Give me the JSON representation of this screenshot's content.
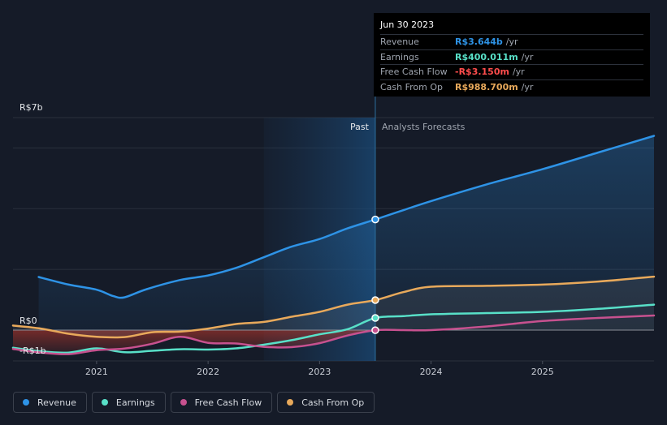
{
  "chart_data": {
    "type": "line",
    "y_axis": {
      "top_label": "R$7b",
      "zero_label": "R$0",
      "bottom_label": "-R$1b",
      "ylim": [
        -1.0,
        7.0
      ],
      "grid_values": [
        7,
        6,
        4,
        2
      ]
    },
    "x_axis": {
      "tick_labels": [
        "2021",
        "2022",
        "2023",
        "2024",
        "2025"
      ],
      "tick_values": [
        2021,
        2022,
        2023,
        2024,
        2025
      ],
      "xlim": [
        2020.25,
        2026.0
      ]
    },
    "divider": {
      "x": 2023.5,
      "past_label": "Past",
      "forecast_label": "Analysts Forecasts",
      "shade_start": 2022.5
    },
    "series": [
      {
        "name": "Revenue",
        "color": "#2e93e6",
        "values": [
          [
            2020.48,
            1.75
          ],
          [
            2020.75,
            1.5
          ],
          [
            2021.0,
            1.33
          ],
          [
            2021.15,
            1.12
          ],
          [
            2021.25,
            1.08
          ],
          [
            2021.45,
            1.35
          ],
          [
            2021.75,
            1.65
          ],
          [
            2022.0,
            1.8
          ],
          [
            2022.25,
            2.05
          ],
          [
            2022.5,
            2.4
          ],
          [
            2022.75,
            2.75
          ],
          [
            2023.0,
            3.0
          ],
          [
            2023.25,
            3.35
          ],
          [
            2023.5,
            3.644
          ],
          [
            2023.75,
            3.95
          ],
          [
            2024.0,
            4.25
          ],
          [
            2024.5,
            4.8
          ],
          [
            2025.0,
            5.3
          ],
          [
            2025.5,
            5.85
          ],
          [
            2026.0,
            6.4
          ]
        ]
      },
      {
        "name": "Earnings",
        "color": "#58e0c8",
        "values": [
          [
            2020.25,
            -0.58
          ],
          [
            2020.5,
            -0.7
          ],
          [
            2020.75,
            -0.74
          ],
          [
            2021.0,
            -0.6
          ],
          [
            2021.25,
            -0.73
          ],
          [
            2021.5,
            -0.68
          ],
          [
            2021.75,
            -0.63
          ],
          [
            2022.0,
            -0.64
          ],
          [
            2022.25,
            -0.6
          ],
          [
            2022.5,
            -0.48
          ],
          [
            2022.75,
            -0.33
          ],
          [
            2023.0,
            -0.14
          ],
          [
            2023.25,
            0.03
          ],
          [
            2023.5,
            0.4
          ],
          [
            2023.75,
            0.46
          ],
          [
            2024.0,
            0.52
          ],
          [
            2024.5,
            0.56
          ],
          [
            2025.0,
            0.6
          ],
          [
            2025.5,
            0.7
          ],
          [
            2026.0,
            0.84
          ]
        ]
      },
      {
        "name": "Free Cash Flow",
        "color": "#c7518f",
        "values": [
          [
            2020.25,
            -0.62
          ],
          [
            2020.5,
            -0.74
          ],
          [
            2020.75,
            -0.79
          ],
          [
            2021.0,
            -0.66
          ],
          [
            2021.25,
            -0.61
          ],
          [
            2021.5,
            -0.45
          ],
          [
            2021.75,
            -0.22
          ],
          [
            2022.0,
            -0.42
          ],
          [
            2022.25,
            -0.44
          ],
          [
            2022.5,
            -0.55
          ],
          [
            2022.75,
            -0.56
          ],
          [
            2023.0,
            -0.43
          ],
          [
            2023.25,
            -0.18
          ],
          [
            2023.5,
            -0.00315
          ],
          [
            2023.75,
            0.0
          ],
          [
            2024.0,
            0.0
          ],
          [
            2024.5,
            0.12
          ],
          [
            2025.0,
            0.3
          ],
          [
            2025.5,
            0.4
          ],
          [
            2026.0,
            0.48
          ]
        ]
      },
      {
        "name": "Cash From Op",
        "color": "#e8a95b",
        "values": [
          [
            2020.25,
            0.15
          ],
          [
            2020.5,
            0.05
          ],
          [
            2020.75,
            -0.12
          ],
          [
            2021.0,
            -0.22
          ],
          [
            2021.25,
            -0.23
          ],
          [
            2021.5,
            -0.07
          ],
          [
            2021.75,
            -0.05
          ],
          [
            2022.0,
            0.05
          ],
          [
            2022.25,
            0.2
          ],
          [
            2022.5,
            0.27
          ],
          [
            2022.75,
            0.44
          ],
          [
            2023.0,
            0.6
          ],
          [
            2023.25,
            0.84
          ],
          [
            2023.5,
            0.9887
          ],
          [
            2023.75,
            1.25
          ],
          [
            2024.0,
            1.43
          ],
          [
            2024.5,
            1.46
          ],
          [
            2025.0,
            1.5
          ],
          [
            2025.5,
            1.6
          ],
          [
            2026.0,
            1.76
          ]
        ]
      }
    ],
    "highlight_x": 2023.5
  },
  "tooltip": {
    "date": "Jun 30 2023",
    "rows": [
      {
        "label": "Revenue",
        "value": "R$3.644b",
        "unit": "/yr",
        "color": "#2e93e6"
      },
      {
        "label": "Earnings",
        "value": "R$400.011m",
        "unit": "/yr",
        "color": "#58e0c8"
      },
      {
        "label": "Free Cash Flow",
        "value": "-R$3.150m",
        "unit": "/yr",
        "color": "#ff4d4d"
      },
      {
        "label": "Cash From Op",
        "value": "R$988.700m",
        "unit": "/yr",
        "color": "#e8a95b"
      }
    ]
  },
  "legend": [
    {
      "label": "Revenue",
      "color": "#2e93e6"
    },
    {
      "label": "Earnings",
      "color": "#58e0c8"
    },
    {
      "label": "Free Cash Flow",
      "color": "#c7518f"
    },
    {
      "label": "Cash From Op",
      "color": "#e8a95b"
    }
  ]
}
